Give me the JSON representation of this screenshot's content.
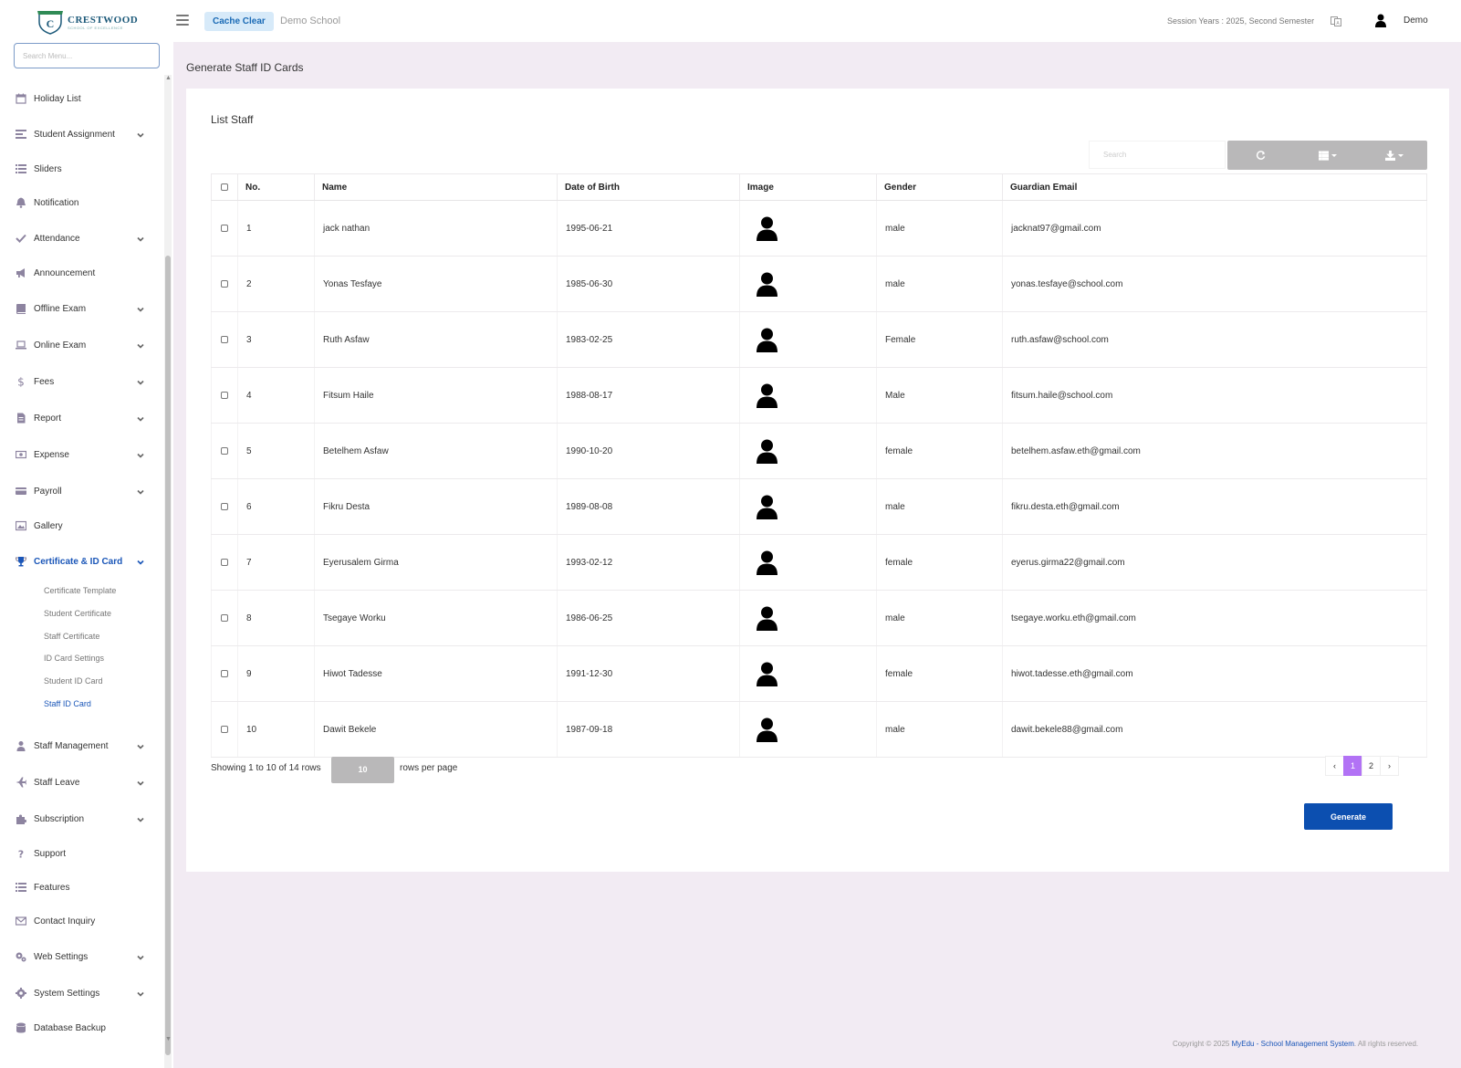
{
  "brand": {
    "name": "CRESTWOOD",
    "tagline": "SCHOOL OF EXCELLENCE"
  },
  "sidebar": {
    "search_placeholder": "Search Menu...",
    "items": [
      {
        "label": "Holiday List",
        "icon": "calendar-icon",
        "expandable": false
      },
      {
        "label": "Student Assignment",
        "icon": "assignment-icon",
        "expandable": true
      },
      {
        "label": "Sliders",
        "icon": "list-icon",
        "expandable": false
      },
      {
        "label": "Notification",
        "icon": "bell-icon",
        "expandable": false
      },
      {
        "label": "Attendance",
        "icon": "check-icon",
        "expandable": true
      },
      {
        "label": "Announcement",
        "icon": "megaphone-icon",
        "expandable": false
      },
      {
        "label": "Offline Exam",
        "icon": "book-icon",
        "expandable": true
      },
      {
        "label": "Online Exam",
        "icon": "laptop-icon",
        "expandable": true
      },
      {
        "label": "Fees",
        "icon": "dollar-icon",
        "expandable": true
      },
      {
        "label": "Report",
        "icon": "report-icon",
        "expandable": true
      },
      {
        "label": "Expense",
        "icon": "money-icon",
        "expandable": true
      },
      {
        "label": "Payroll",
        "icon": "credit-card-icon",
        "expandable": true
      },
      {
        "label": "Gallery",
        "icon": "image-icon",
        "expandable": false
      },
      {
        "label": "Certificate & ID Card",
        "icon": "trophy-icon",
        "expandable": true,
        "active": true
      },
      {
        "label": "Staff Management",
        "icon": "staff-icon",
        "expandable": true
      },
      {
        "label": "Staff Leave",
        "icon": "plane-icon",
        "expandable": true
      },
      {
        "label": "Subscription",
        "icon": "puzzle-icon",
        "expandable": true
      },
      {
        "label": "Support",
        "icon": "question-icon",
        "expandable": false
      },
      {
        "label": "Features",
        "icon": "features-icon",
        "expandable": false
      },
      {
        "label": "Contact Inquiry",
        "icon": "envelope-icon",
        "expandable": false
      },
      {
        "label": "Web Settings",
        "icon": "gears-icon",
        "expandable": true
      },
      {
        "label": "System Settings",
        "icon": "gear-icon",
        "expandable": true
      },
      {
        "label": "Database Backup",
        "icon": "database-icon",
        "expandable": false
      }
    ],
    "submenu": [
      {
        "label": "Certificate Template"
      },
      {
        "label": "Student Certificate"
      },
      {
        "label": "Staff Certificate"
      },
      {
        "label": "ID Card Settings"
      },
      {
        "label": "Student ID Card"
      },
      {
        "label": "Staff ID Card",
        "active": true
      }
    ]
  },
  "topbar": {
    "cache_clear": "Cache Clear",
    "school_name": "Demo School",
    "session": "Session Years : 2025, Second Semester",
    "user_name": "Demo"
  },
  "page": {
    "title": "Generate Staff ID Cards"
  },
  "card": {
    "title": "List Staff",
    "search_placeholder": "Search",
    "columns": [
      "No.",
      "Name",
      "Date of Birth",
      "Image",
      "Gender",
      "Guardian Email"
    ],
    "rows": [
      {
        "no": "1",
        "name": "jack nathan",
        "dob": "1995-06-21",
        "gender": "male",
        "email": "jacknat97@gmail.com"
      },
      {
        "no": "2",
        "name": "Yonas Tesfaye",
        "dob": "1985-06-30",
        "gender": "male",
        "email": "yonas.tesfaye@school.com"
      },
      {
        "no": "3",
        "name": "Ruth Asfaw",
        "dob": "1983-02-25",
        "gender": "Female",
        "email": "ruth.asfaw@school.com"
      },
      {
        "no": "4",
        "name": "Fitsum Haile",
        "dob": "1988-08-17",
        "gender": "Male",
        "email": "fitsum.haile@school.com"
      },
      {
        "no": "5",
        "name": "Betelhem Asfaw",
        "dob": "1990-10-20",
        "gender": "female",
        "email": "betelhem.asfaw.eth@gmail.com"
      },
      {
        "no": "6",
        "name": "Fikru Desta",
        "dob": "1989-08-08",
        "gender": "male",
        "email": "fikru.desta.eth@gmail.com"
      },
      {
        "no": "7",
        "name": "Eyerusalem Girma",
        "dob": "1993-02-12",
        "gender": "female",
        "email": "eyerus.girma22@gmail.com"
      },
      {
        "no": "8",
        "name": "Tsegaye Worku",
        "dob": "1986-06-25",
        "gender": "male",
        "email": "tsegaye.worku.eth@gmail.com"
      },
      {
        "no": "9",
        "name": "Hiwot Tadesse",
        "dob": "1991-12-30",
        "gender": "female",
        "email": "hiwot.tadesse.eth@gmail.com"
      },
      {
        "no": "10",
        "name": "Dawit Bekele",
        "dob": "1987-09-18",
        "gender": "male",
        "email": "dawit.bekele88@gmail.com"
      }
    ],
    "pager_info": "Showing 1 to 10 of 14 rows",
    "rows_per_page": "10",
    "rows_per_page_suffix": "rows per page",
    "pages": [
      "‹",
      "1",
      "2",
      "›"
    ],
    "current_page": "1",
    "generate": "Generate"
  },
  "footer": {
    "prefix": "Copyright © 2025",
    "brand_link": "MyEdu",
    "sep": " - ",
    "system_link": "School Management System",
    "suffix": ". All rights reserved."
  },
  "colors": {
    "accent": "#1a56b8",
    "pager_active": "#b272f5",
    "generate_btn": "#0c4fb0",
    "page_bg": "#f2ebf3"
  }
}
